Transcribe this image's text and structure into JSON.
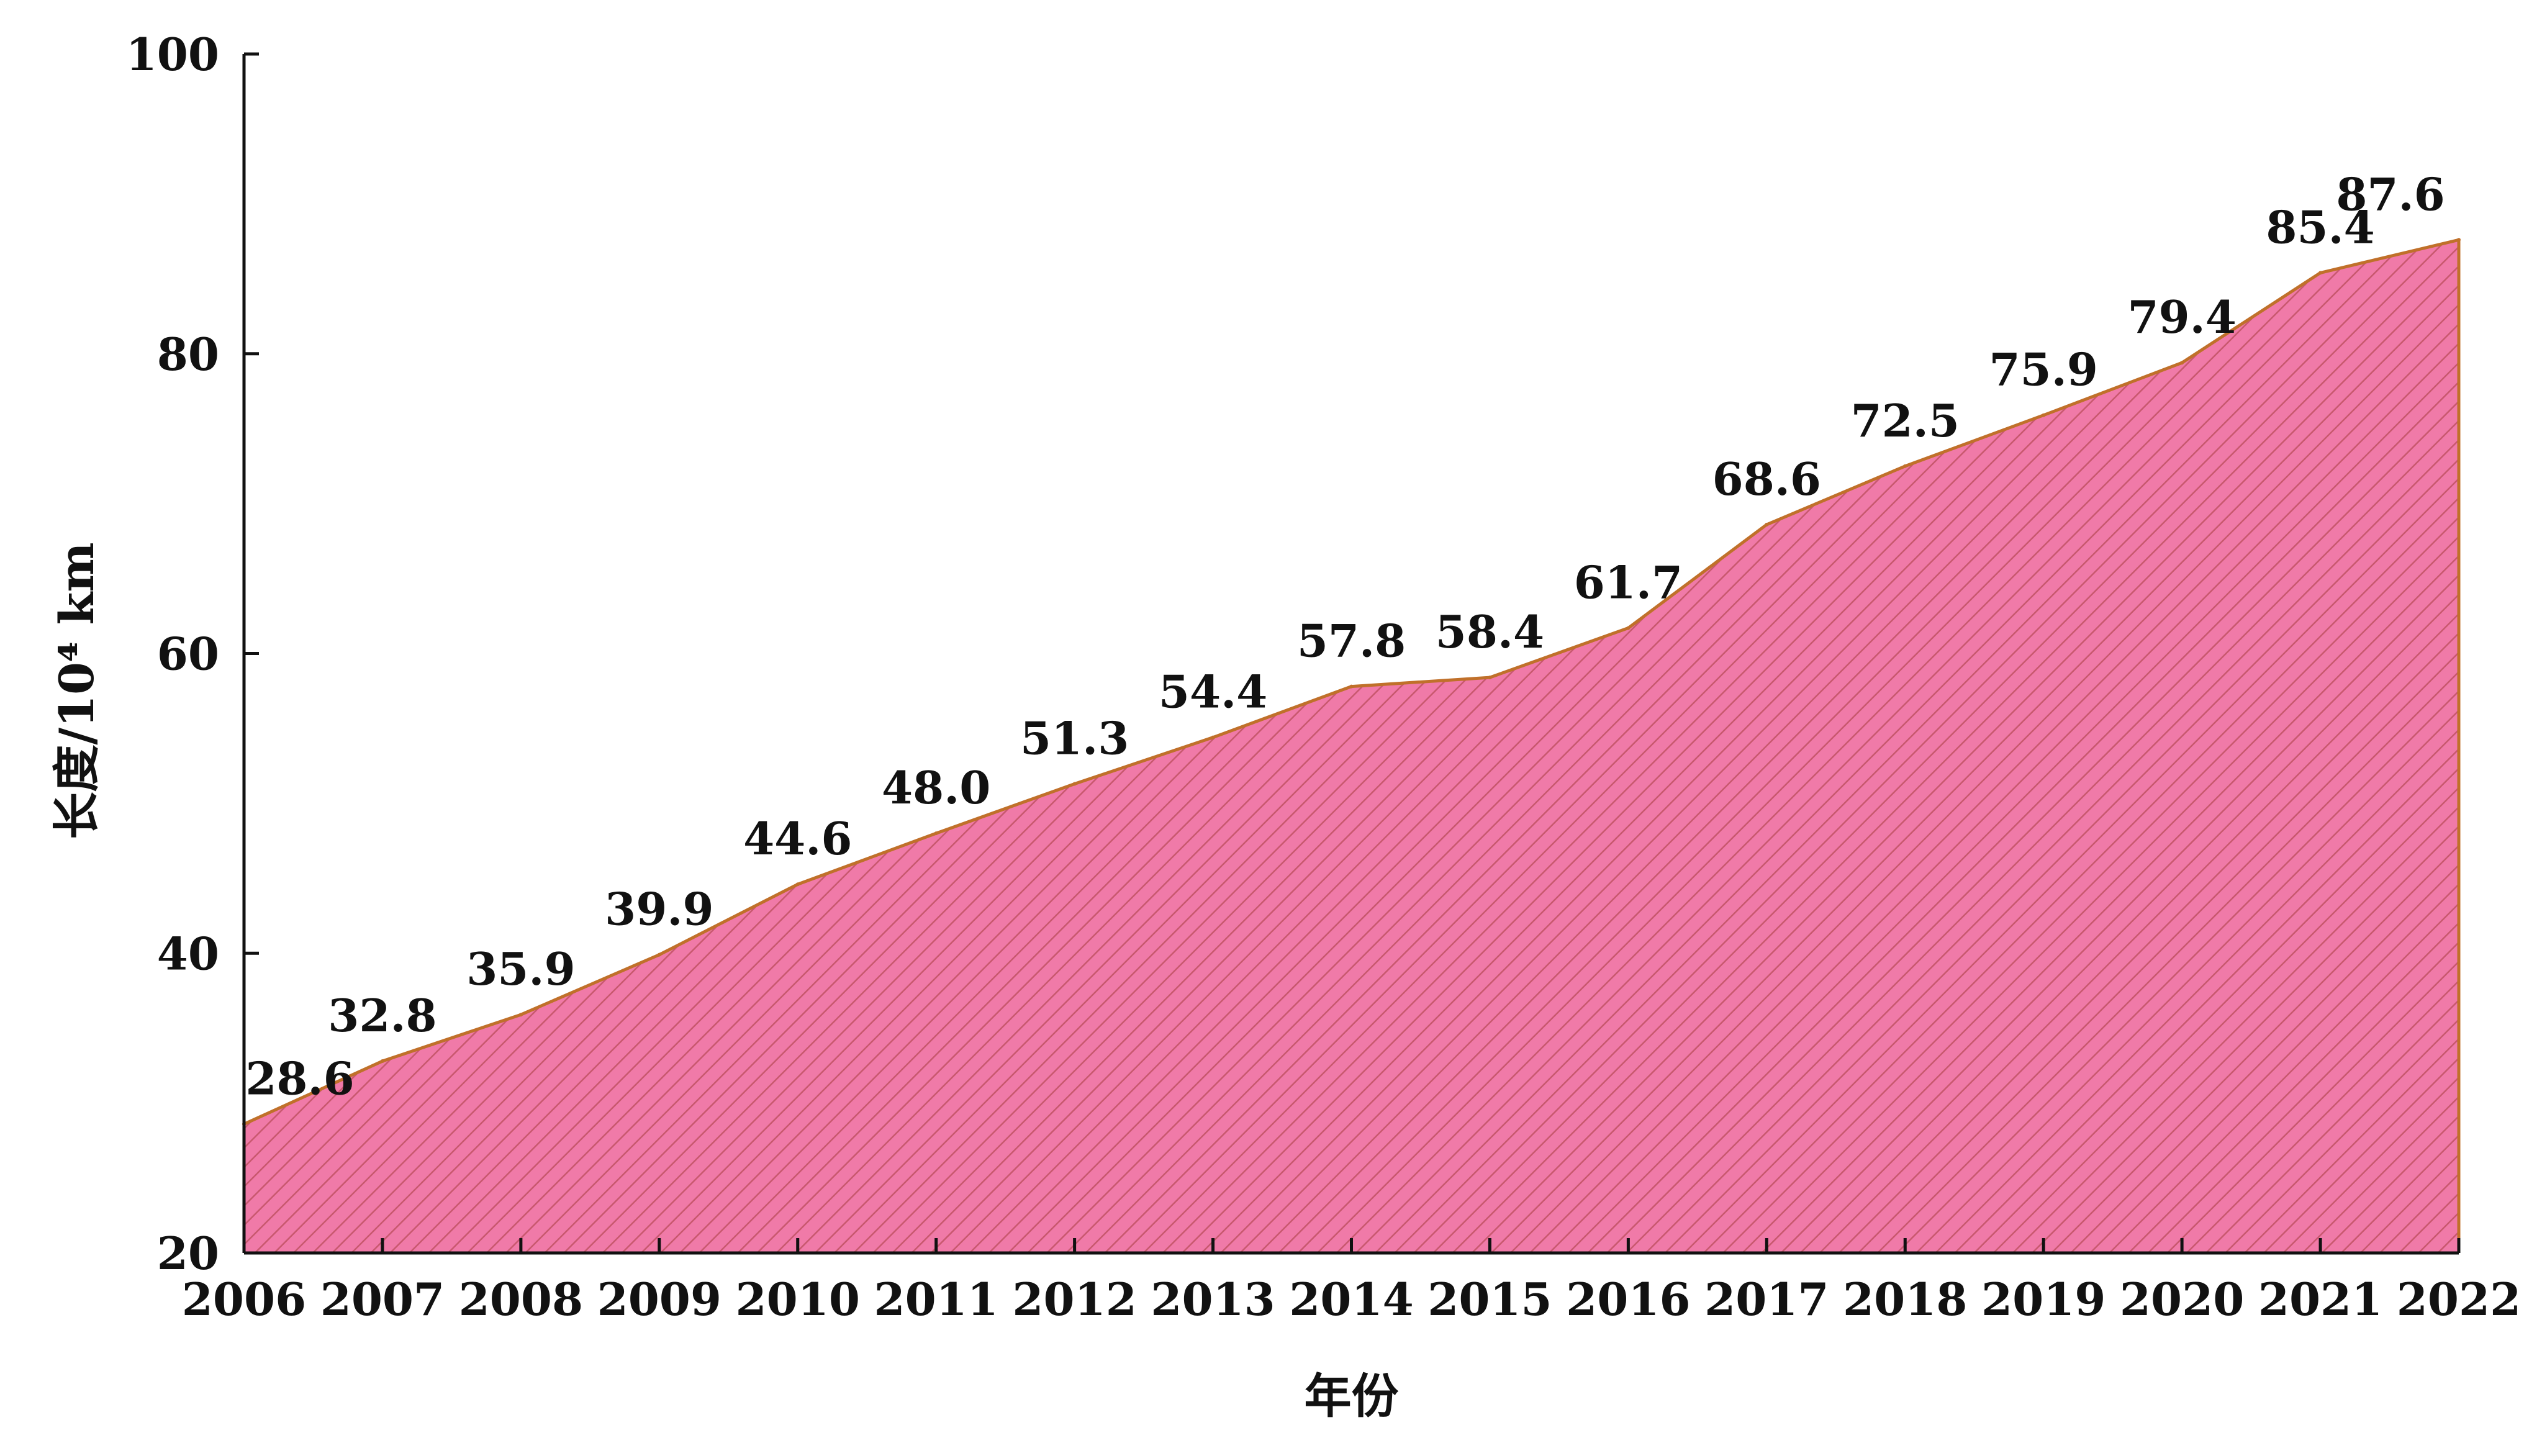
{
  "chart_data": {
    "type": "area",
    "x": [
      "2006",
      "2007",
      "2008",
      "2009",
      "2010",
      "2011",
      "2012",
      "2013",
      "2014",
      "2015",
      "2016",
      "2017",
      "2018",
      "2019",
      "2020",
      "2021",
      "2022"
    ],
    "values": [
      28.6,
      32.8,
      35.9,
      39.9,
      44.6,
      48.0,
      51.3,
      54.4,
      57.8,
      58.4,
      61.7,
      68.6,
      72.5,
      75.9,
      79.4,
      85.4,
      87.6
    ],
    "value_labels": [
      "28.6",
      "32.8",
      "35.9",
      "39.9",
      "44.6",
      "48.0",
      "51.3",
      "54.4",
      "57.8",
      "58.4",
      "61.7",
      "68.6",
      "72.5",
      "75.9",
      "79.4",
      "85.4",
      "87.6"
    ],
    "title": "",
    "xlabel": "年份",
    "ylabel": "长度/10⁴ km",
    "ylim": [
      20,
      100
    ],
    "yticks": [
      "20",
      "40",
      "60",
      "80",
      "100"
    ],
    "grid": false,
    "legend": "none",
    "colors": {
      "fill": "#f07aa8",
      "hatch": "#c8586e",
      "line": "#c0702a",
      "axis": "#111111"
    }
  }
}
